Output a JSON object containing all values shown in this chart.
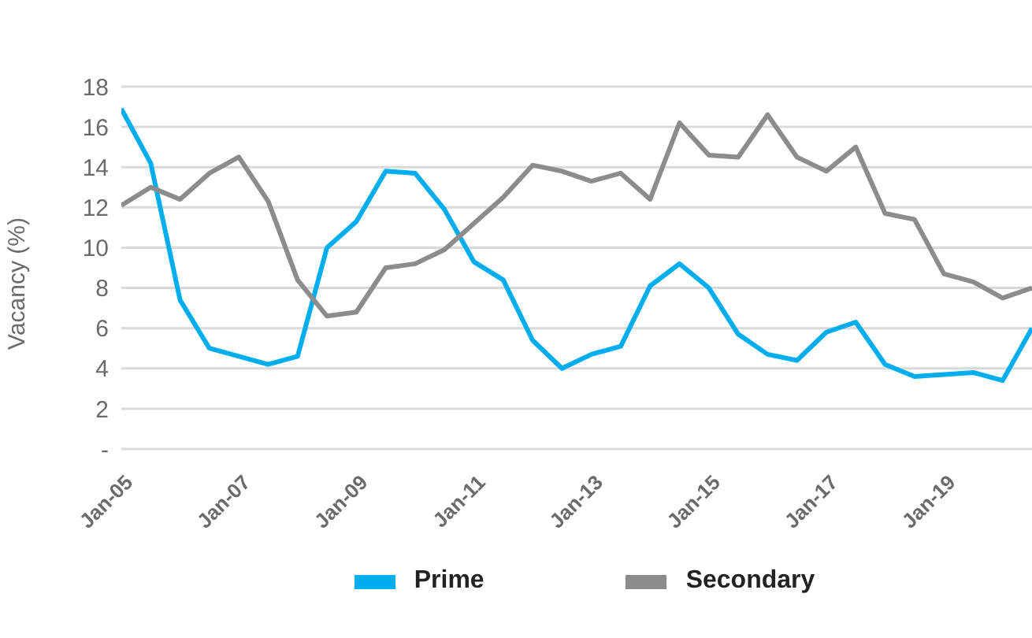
{
  "chart_data": {
    "type": "line",
    "ylabel": "Vacancy (%)",
    "categories": [
      "Jan-05",
      null,
      null,
      null,
      "Jan-07",
      null,
      null,
      null,
      "Jan-09",
      null,
      null,
      null,
      "Jan-11",
      null,
      null,
      null,
      "Jan-13",
      null,
      null,
      null,
      "Jan-15",
      null,
      null,
      null,
      "Jan-17",
      null,
      null,
      null,
      "Jan-19",
      null,
      null,
      null
    ],
    "series": [
      {
        "name": "Prime",
        "color": "#00aeef",
        "values": [
          16.9,
          14.2,
          7.4,
          5.0,
          4.6,
          4.2,
          4.6,
          10.0,
          11.3,
          13.8,
          13.7,
          11.9,
          9.3,
          8.4,
          5.4,
          4.0,
          4.7,
          5.1,
          8.1,
          9.2,
          8.0,
          5.7,
          4.7,
          4.4,
          5.8,
          6.3,
          4.2,
          3.6,
          3.7,
          3.8,
          3.4,
          6.0
        ]
      },
      {
        "name": "Secondary",
        "color": "#8c8c8c",
        "values": [
          12.1,
          13.0,
          12.4,
          13.7,
          14.5,
          12.3,
          8.4,
          6.6,
          6.8,
          9.0,
          9.2,
          9.9,
          11.2,
          12.5,
          14.1,
          13.8,
          13.3,
          13.7,
          12.4,
          16.2,
          14.6,
          14.5,
          16.6,
          14.5,
          13.8,
          15.0,
          11.7,
          11.4,
          8.7,
          8.3,
          7.5,
          8.0
        ]
      }
    ],
    "ylim": [
      0,
      18
    ],
    "yticks": [
      {
        "value": 0,
        "label": "-"
      },
      2,
      4,
      6,
      8,
      10,
      12,
      14,
      16,
      18
    ],
    "grid": "y",
    "legend": "bottom",
    "marker": "none",
    "line_style": "solid"
  }
}
